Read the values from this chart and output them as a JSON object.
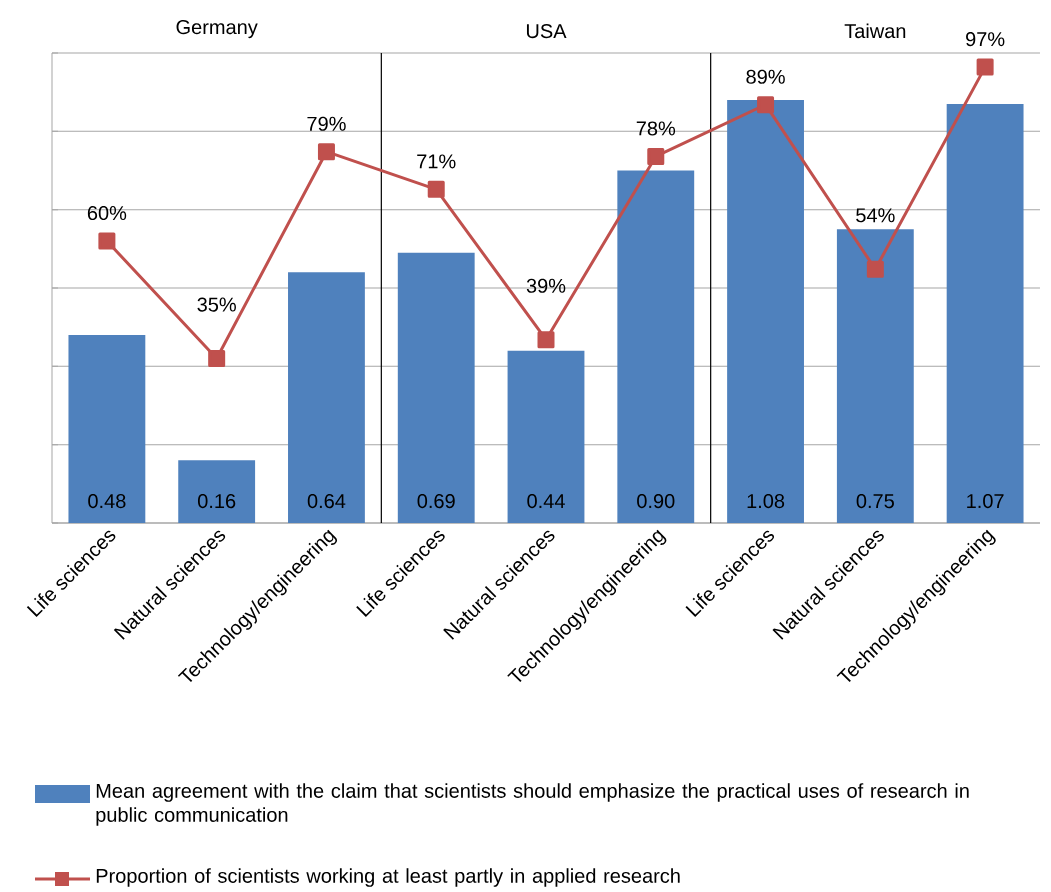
{
  "chart_data": {
    "type": "bar",
    "categories": [
      "Life sciences",
      "Natural sciences",
      "Technology/engineering",
      "Life sciences",
      "Natural sciences",
      "Technology/engineering",
      "Life sciences",
      "Natural sciences",
      "Technology/engineering"
    ],
    "series": [
      {
        "name": "Mean agreement with the claim that scientists should emphasize the practical uses of research in public communication",
        "color": "#4f81bd",
        "values": [
          0.48,
          0.16,
          0.64,
          0.69,
          0.44,
          0.9,
          1.08,
          0.75,
          1.07
        ],
        "value_labels": [
          "0.48",
          "0.16",
          "0.64",
          "0.69",
          "0.44",
          "0.90",
          "1.08",
          "0.75",
          "1.07"
        ]
      },
      {
        "name": "Proportion of scientists working at least partly in applied research",
        "type": "line",
        "axis": "y2",
        "color": "#c0504d",
        "values": [
          60,
          35,
          79,
          71,
          39,
          78,
          89,
          54,
          97
        ],
        "value_labels": [
          "60%",
          "35%",
          "79%",
          "71%",
          "39%",
          "78%",
          "89%",
          "54%",
          "97%"
        ]
      }
    ],
    "ylim": [
      0,
      1.2
    ],
    "yticks": [
      {
        "value": 0,
        "label": null
      },
      {
        "value": 0.2,
        "label": null
      },
      {
        "value": 0.4,
        "label": null
      },
      {
        "value": 0.6,
        "label": null
      },
      {
        "value": 0.8,
        "label": null
      },
      {
        "value": 1.0,
        "label": null
      },
      {
        "value": 1.2,
        "label": null
      }
    ],
    "y2lim": [
      0,
      100
    ],
    "grid": "y",
    "tick_labels": "x",
    "marker": "square",
    "legend": "bottom",
    "annotations": [
      "Germany",
      "USA",
      "Taiwan"
    ]
  }
}
